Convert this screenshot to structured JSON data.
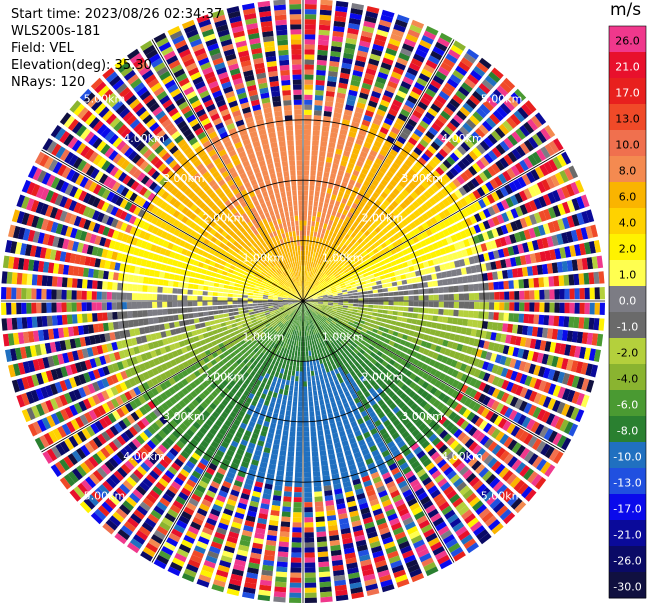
{
  "meta": {
    "start_time": "Start time: 2023/08/26 02:34:37",
    "instrument": "WLS200s-181",
    "field": "Field: VEL",
    "elevation": "Elevation(deg): 35.30",
    "nrays": "NRays: 120"
  },
  "colorbar": {
    "unit": "m/s",
    "ticks": [
      "26.0",
      "21.0",
      "17.0",
      "13.0",
      "10.0",
      "8.0",
      "6.0",
      "4.0",
      "2.0",
      "1.0",
      "0.0",
      "-1.0",
      "-2.0",
      "-4.0",
      "-6.0",
      "-8.0",
      "-10.0",
      "-13.0",
      "-17.0",
      "-21.0",
      "-26.0",
      "-30.0"
    ],
    "colors": [
      "#f0388c",
      "#e8102c",
      "#e8201e",
      "#f04a28",
      "#f0704e",
      "#f48a50",
      "#fab400",
      "#ffd200",
      "#fff200",
      "#ffff50",
      "#7c7c84",
      "#6a6a6a",
      "#b4d03c",
      "#8ab430",
      "#4a9a32",
      "#2a8030",
      "#2070c0",
      "#2050e0",
      "#0a0aeb",
      "#0a0a9a",
      "#0a0a66",
      "#101040"
    ]
  },
  "chart_data": {
    "type": "heatmap",
    "projection": "polar-ppi",
    "field": "VEL",
    "unit": "m/s",
    "nrays": 120,
    "range_max_km": 5.0,
    "valid_range_km": 3.2,
    "range_rings_km": [
      1,
      2,
      3
    ],
    "range_ring_labels": [
      "1.00km",
      "2.00km",
      "3.00km",
      "4.00km",
      "5.00km"
    ],
    "spokes_deg": [
      0,
      30,
      60,
      90,
      120,
      150,
      180,
      210,
      240,
      270,
      300,
      330
    ],
    "velocity_pattern": {
      "max_speed_ms": 9,
      "wind_from_direction_deg": 355,
      "noise_beyond_km": 3.2,
      "noise_band_km": 0.25
    }
  }
}
